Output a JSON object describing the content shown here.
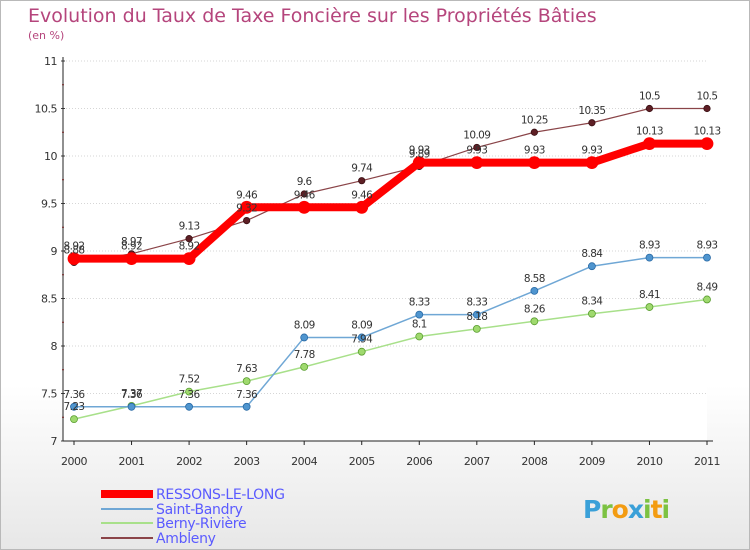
{
  "chart_data": {
    "type": "line",
    "title": "Evolution du Taux de Taxe Foncière sur les Propriétés Bâties",
    "ylabel": "(en %)",
    "xlabel": "",
    "ylim": [
      7,
      11
    ],
    "yticks": [
      "7",
      "7.5",
      "8",
      "8.5",
      "9",
      "9.5",
      "10",
      "10.5",
      "11"
    ],
    "x": [
      "2000",
      "2001",
      "2002",
      "2003",
      "2004",
      "2005",
      "2006",
      "2007",
      "2008",
      "2009",
      "2010",
      "2011"
    ],
    "series": [
      {
        "name": "RESSONS-LE-LONG",
        "color": "#ff0000",
        "values": [
          8.92,
          8.92,
          8.92,
          9.46,
          9.46,
          9.46,
          9.93,
          9.93,
          9.93,
          9.93,
          10.13,
          10.13
        ],
        "labels": [
          "8.92",
          "8.92",
          "8.92",
          "9.46",
          "9.46",
          "9.46",
          "9.93",
          "9.93",
          "9.93",
          "9.93",
          "10.13",
          "10.13"
        ]
      },
      {
        "name": "Saint-Bandry",
        "color": "#6fa7d5",
        "values": [
          7.36,
          7.36,
          7.36,
          7.36,
          8.09,
          8.09,
          8.33,
          8.33,
          8.58,
          8.84,
          8.93,
          8.93
        ],
        "labels": [
          "7.36",
          "7.36",
          "7.36",
          "7.36",
          "8.09",
          "8.09",
          "8.33",
          "8.33",
          "8.58",
          "8.84",
          "8.93",
          "8.93"
        ]
      },
      {
        "name": "Berny-Rivière",
        "color": "#a8e08a",
        "values": [
          7.23,
          7.37,
          7.52,
          7.63,
          7.78,
          7.94,
          8.1,
          8.18,
          8.26,
          8.34,
          8.41,
          8.49
        ],
        "labels": [
          "7.23",
          "7.37",
          "7.52",
          "7.63",
          "7.78",
          "7.94",
          "8.1",
          "8.18",
          "8.26",
          "8.34",
          "8.41",
          "8.49"
        ]
      },
      {
        "name": "Ambleny",
        "color": "#8a4448",
        "values": [
          8.88,
          8.97,
          9.13,
          9.32,
          9.6,
          9.74,
          9.89,
          10.09,
          10.25,
          10.35,
          10.5,
          10.5
        ],
        "labels": [
          "8.88",
          "8.97",
          "9.13",
          "9.32",
          "9.6",
          "9.74",
          "9.89",
          "10.09",
          "10.25",
          "10.35",
          "10.5",
          "10.5"
        ]
      }
    ]
  },
  "brand": {
    "letters": [
      "P",
      "r",
      "o",
      "x",
      "i",
      "t",
      "i"
    ],
    "colors": [
      "#3aa0d8",
      "#7cc242",
      "#f39c12",
      "#3aa0d8",
      "#7cc242",
      "#f39c12",
      "#7cc242"
    ]
  }
}
